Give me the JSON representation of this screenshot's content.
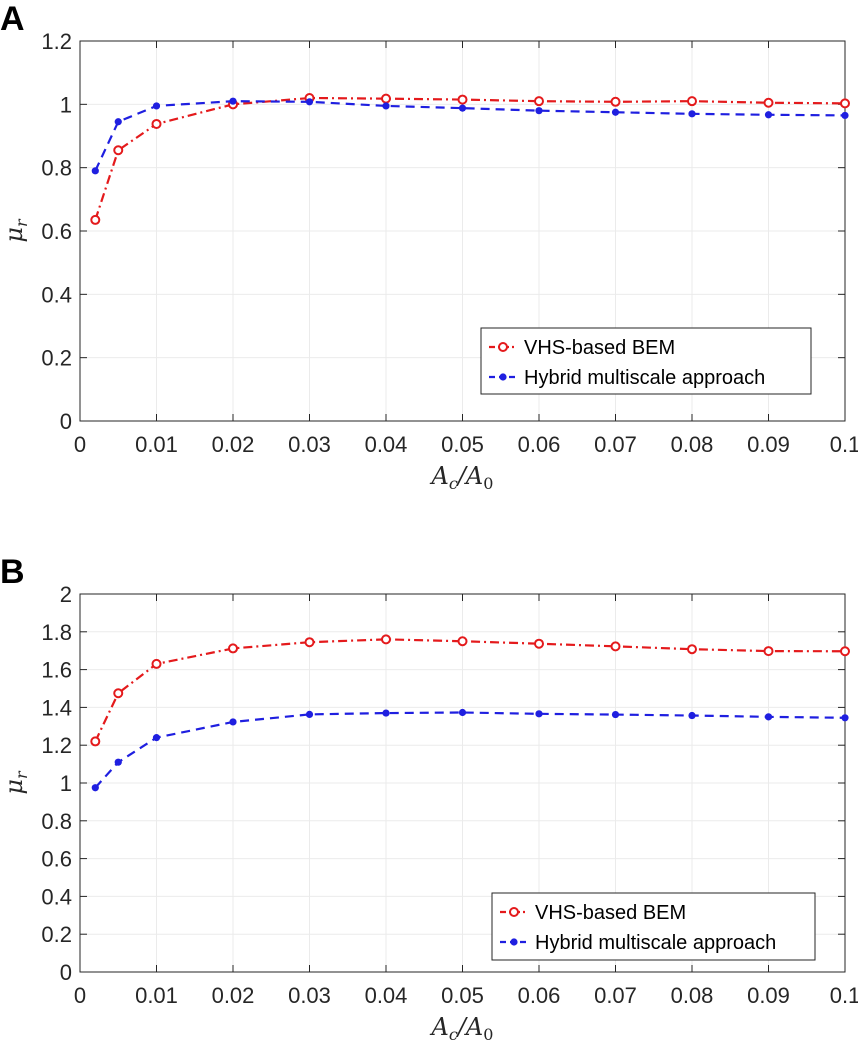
{
  "chart_data": [
    {
      "type": "line",
      "panel": "A",
      "x": [
        0.002,
        0.005,
        0.01,
        0.02,
        0.03,
        0.04,
        0.05,
        0.06,
        0.07,
        0.08,
        0.09,
        0.1
      ],
      "series": [
        {
          "name": "VHS-based BEM",
          "color": "#e41a1c",
          "line": "dash-dot",
          "marker": "circle",
          "values": [
            0.635,
            0.855,
            0.938,
            1.0,
            1.02,
            1.018,
            1.015,
            1.01,
            1.008,
            1.01,
            1.005,
            1.003
          ]
        },
        {
          "name": "Hybrid multiscale approach",
          "color": "#1f1fe0",
          "line": "dashed",
          "marker": "dot",
          "values": [
            0.79,
            0.945,
            0.995,
            1.01,
            1.008,
            0.995,
            0.988,
            0.98,
            0.975,
            0.97,
            0.967,
            0.965
          ]
        }
      ],
      "xlabel": "A_c/A_0",
      "ylabel": "μ_r",
      "xlim": [
        0,
        0.1
      ],
      "ylim": [
        0,
        1.2
      ],
      "xticks": [
        "0",
        "0.01",
        "0.02",
        "0.03",
        "0.04",
        "0.05",
        "0.06",
        "0.07",
        "0.08",
        "0.09",
        "0.1"
      ],
      "yticks": [
        "0",
        "0.2",
        "0.4",
        "0.6",
        "0.8",
        "1",
        "1.2"
      ],
      "grid": true,
      "legend": "bottom-right"
    },
    {
      "type": "line",
      "panel": "B",
      "x": [
        0.002,
        0.005,
        0.01,
        0.02,
        0.03,
        0.04,
        0.05,
        0.06,
        0.07,
        0.08,
        0.09,
        0.1
      ],
      "series": [
        {
          "name": "VHS-based BEM",
          "color": "#e41a1c",
          "line": "dash-dot",
          "marker": "circle",
          "values": [
            1.22,
            1.475,
            1.63,
            1.712,
            1.745,
            1.76,
            1.75,
            1.737,
            1.723,
            1.708,
            1.698,
            1.697
          ]
        },
        {
          "name": "Hybrid multiscale approach",
          "color": "#1f1fe0",
          "line": "dashed",
          "marker": "dot",
          "values": [
            0.975,
            1.11,
            1.24,
            1.323,
            1.363,
            1.37,
            1.373,
            1.366,
            1.362,
            1.357,
            1.35,
            1.345
          ]
        }
      ],
      "xlabel": "A_c/A_0",
      "ylabel": "μ_r",
      "xlim": [
        0,
        0.1
      ],
      "ylim": [
        0,
        2
      ],
      "xticks": [
        "0",
        "0.01",
        "0.02",
        "0.03",
        "0.04",
        "0.05",
        "0.06",
        "0.07",
        "0.08",
        "0.09",
        "0.1"
      ],
      "yticks": [
        "0",
        "0.2",
        "0.4",
        "0.6",
        "0.8",
        "1",
        "1.2",
        "1.4",
        "1.6",
        "1.8",
        "2"
      ],
      "grid": true,
      "legend": "bottom-right"
    }
  ]
}
